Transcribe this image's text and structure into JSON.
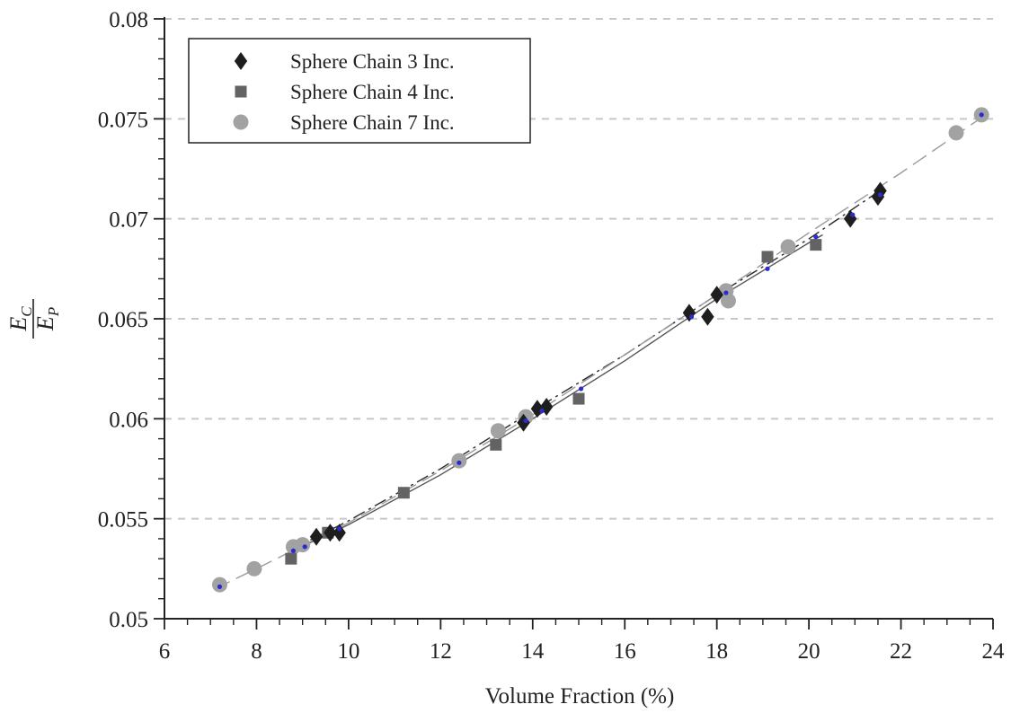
{
  "chart_data": {
    "type": "scatter",
    "xlabel": "Volume Fraction (%)",
    "ylabel": {
      "numerator": "E",
      "numerator_sub": "C",
      "denominator": "E",
      "denominator_sub": "P"
    },
    "xlim": [
      6,
      24
    ],
    "ylim": [
      0.05,
      0.08
    ],
    "x_ticks": [
      6,
      8,
      10,
      12,
      14,
      16,
      18,
      20,
      22,
      24
    ],
    "y_ticks": [
      0.05,
      0.055,
      0.06,
      0.065,
      0.07,
      0.075,
      0.08
    ],
    "y_tick_labels": [
      "0.05",
      "0.055",
      "0.06",
      "0.065",
      "0.07",
      "0.075",
      "0.08"
    ],
    "grid": "horizontal dashed",
    "legend_position": "top-left",
    "colors": {
      "chain3": "#1e1e1e",
      "chain4": "#636363",
      "chain7": "#a2a2a2",
      "fit": "#2b2bd0"
    },
    "series": [
      {
        "name": "Sphere Chain 3 Inc.",
        "marker": "diamond",
        "color": "#1e1e1e",
        "points": [
          [
            9.3,
            0.0541
          ],
          [
            9.6,
            0.0543
          ],
          [
            9.8,
            0.0543
          ],
          [
            13.8,
            0.0598
          ],
          [
            14.1,
            0.0605
          ],
          [
            14.3,
            0.0606
          ],
          [
            17.4,
            0.0653
          ],
          [
            17.8,
            0.0651
          ],
          [
            18.0,
            0.0662
          ],
          [
            20.9,
            0.07
          ],
          [
            21.5,
            0.0711
          ],
          [
            21.55,
            0.0714
          ]
        ]
      },
      {
        "name": "Sphere Chain 4 Inc.",
        "marker": "square",
        "color": "#636363",
        "points": [
          [
            8.75,
            0.053
          ],
          [
            9.55,
            0.0543
          ],
          [
            11.2,
            0.0563
          ],
          [
            13.2,
            0.0587
          ],
          [
            15.0,
            0.061
          ],
          [
            19.1,
            0.0681
          ],
          [
            20.15,
            0.0687
          ]
        ]
      },
      {
        "name": "Sphere Chain 7 Inc.",
        "marker": "circle",
        "color": "#a2a2a2",
        "points": [
          [
            7.2,
            0.0517
          ],
          [
            7.95,
            0.0525
          ],
          [
            8.8,
            0.0536
          ],
          [
            9.0,
            0.0537
          ],
          [
            12.4,
            0.0579
          ],
          [
            13.25,
            0.0594
          ],
          [
            13.85,
            0.0601
          ],
          [
            18.2,
            0.0664
          ],
          [
            18.25,
            0.0659
          ],
          [
            19.55,
            0.0686
          ],
          [
            23.2,
            0.0743
          ],
          [
            23.75,
            0.0752
          ]
        ]
      }
    ],
    "fit_points": [
      [
        7.2,
        0.0516
      ],
      [
        8.8,
        0.0534
      ],
      [
        9.05,
        0.0536
      ],
      [
        9.8,
        0.0545
      ],
      [
        12.4,
        0.0578
      ],
      [
        13.85,
        0.0599
      ],
      [
        14.2,
        0.0604
      ],
      [
        15.05,
        0.0615
      ],
      [
        17.45,
        0.0651
      ],
      [
        18.2,
        0.0663
      ],
      [
        19.1,
        0.0675
      ],
      [
        20.15,
        0.0691
      ],
      [
        20.95,
        0.0702
      ],
      [
        21.55,
        0.0712
      ],
      [
        23.75,
        0.0752
      ]
    ],
    "trend_lines": [
      {
        "style": "dash-dot",
        "color": "#2a2a2a",
        "points": [
          [
            8.7,
            0.0534
          ],
          [
            10,
            0.0549
          ],
          [
            12,
            0.0575
          ],
          [
            14,
            0.0604
          ],
          [
            16,
            0.0632
          ],
          [
            18,
            0.0662
          ],
          [
            20,
            0.069
          ],
          [
            21.6,
            0.0715
          ]
        ]
      },
      {
        "style": "solid",
        "color": "#555555",
        "points": [
          [
            8.7,
            0.0533
          ],
          [
            10,
            0.0547
          ],
          [
            12,
            0.0572
          ],
          [
            14,
            0.06
          ],
          [
            16,
            0.0629
          ],
          [
            18,
            0.066
          ],
          [
            20,
            0.0688
          ],
          [
            20.3,
            0.0692
          ]
        ]
      },
      {
        "style": "long-dash",
        "color": "#9a9a9a",
        "points": [
          [
            7.1,
            0.0515
          ],
          [
            8,
            0.0525
          ],
          [
            10,
            0.0548
          ],
          [
            12,
            0.0574
          ],
          [
            14,
            0.0602
          ],
          [
            16,
            0.0632
          ],
          [
            18,
            0.0662
          ],
          [
            20,
            0.0693
          ],
          [
            22,
            0.0723
          ],
          [
            23.9,
            0.0753
          ]
        ]
      }
    ]
  }
}
